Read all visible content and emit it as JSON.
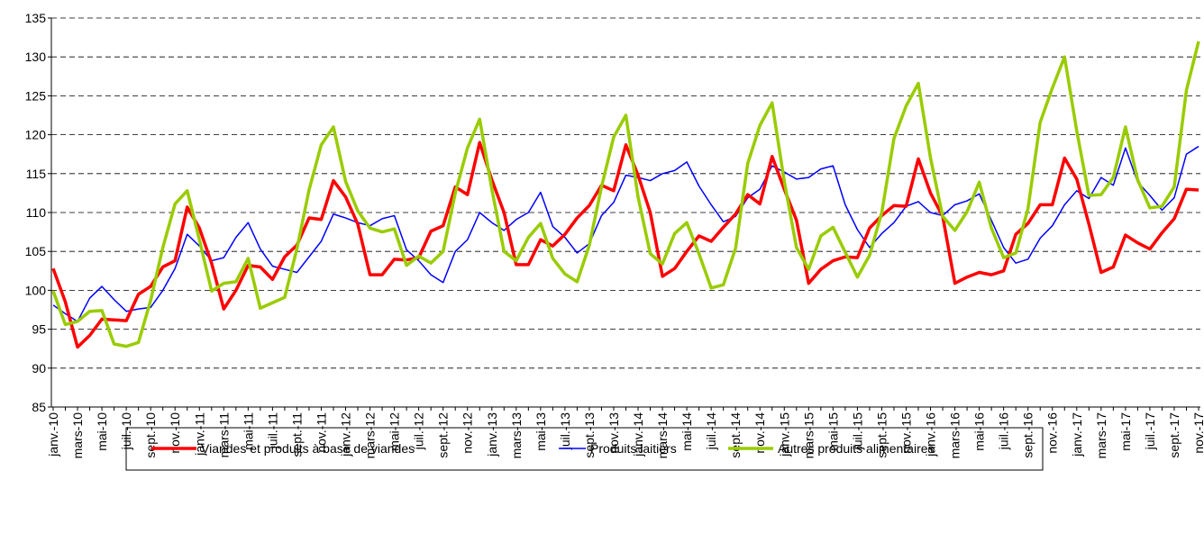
{
  "chart_data": {
    "type": "line",
    "categories": [
      "janv.-10",
      null,
      "mars-10",
      null,
      "mai-10",
      null,
      "juil.-10",
      null,
      "sept.-10",
      null,
      "nov.-10",
      null,
      "janv.-11",
      null,
      "mars-11",
      null,
      "mai-11",
      null,
      "juil.-11",
      null,
      "sept.-11",
      null,
      "nov.-11",
      null,
      "janv.-12",
      null,
      "mars-12",
      null,
      "mai-12",
      null,
      "juil.-12",
      null,
      "sept.-12",
      null,
      "nov.-12",
      null,
      "janv.-13",
      null,
      "mars-13",
      null,
      "mai-13",
      null,
      "juil.-13",
      null,
      "sept.-13",
      null,
      "nov.-13",
      null,
      "janv.-14",
      null,
      "mars-14",
      null,
      "mai-14",
      null,
      "juil.-14",
      null,
      "sept.-14",
      null,
      "nov.-14",
      null,
      "janv.-15",
      null,
      "mars-15",
      null,
      "mai-15",
      null,
      "juil.-15",
      null,
      "sept.-15",
      null,
      "nov.-15",
      null,
      "janv.-16",
      null,
      "mars-16",
      null,
      "mai-16",
      null,
      "juil.-16",
      null,
      "sept.-16",
      null,
      "nov.-16",
      null,
      "janv.-17",
      null,
      "mars-17",
      null,
      "mai-17",
      null,
      "juil.-17",
      null,
      "sept.-17",
      null,
      "nov.-17"
    ],
    "series": [
      {
        "name": "Viandes et produits à base de viandes",
        "color": "#ff0000",
        "width": 3.5,
        "values": [
          102.8,
          98.5,
          92.7,
          94.2,
          96.3,
          96.2,
          96.1,
          99.5,
          100.5,
          103,
          103.8,
          110.7,
          108,
          103.5,
          97.6,
          100,
          103.2,
          103,
          101.4,
          104.3,
          105.8,
          109.3,
          109.1,
          114.1,
          112,
          108.5,
          102,
          102,
          104,
          103.9,
          104.2,
          107.6,
          108.3,
          113.3,
          112.3,
          119,
          114.2,
          110,
          103.3,
          103.3,
          106.5,
          105.7,
          107.2,
          109.3,
          110.9,
          113.5,
          112.8,
          118.7,
          114.8,
          110,
          101.8,
          102.8,
          105,
          107,
          106.3,
          108.1,
          109.8,
          112.3,
          111.1,
          117.2,
          113,
          109,
          100.9,
          102.7,
          103.8,
          104.3,
          104.2,
          108,
          109.6,
          110.9,
          110.8,
          116.9,
          112.5,
          109.5,
          100.9,
          101.7,
          102.3,
          102,
          102.5,
          107.2,
          108.6,
          111,
          111,
          117,
          114.3,
          108.5,
          102.3,
          103,
          107.1,
          106.1,
          105.3,
          107.4,
          109.2,
          113,
          112.9
        ]
      },
      {
        "name": "Produits laitiers",
        "color": "#0000ff",
        "width": 1.5,
        "values": [
          98.1,
          97,
          96,
          99,
          100.5,
          98.8,
          97.3,
          97.6,
          97.8,
          100,
          102.8,
          107.2,
          105.7,
          103.8,
          104.2,
          106.8,
          108.7,
          105.3,
          103.1,
          102.7,
          102.3,
          104.3,
          106.3,
          109.8,
          109.3,
          108.7,
          108.3,
          109.2,
          109.6,
          105.2,
          103.8,
          102,
          101,
          105,
          106.5,
          110,
          108.7,
          107.7,
          109.1,
          110,
          112.6,
          108.2,
          106.8,
          104.8,
          106,
          109.6,
          111.3,
          114.8,
          114.5,
          114.1,
          115,
          115.4,
          116.5,
          113.4,
          111,
          108.8,
          109.5,
          111.9,
          113,
          116,
          115.2,
          114.3,
          114.5,
          115.6,
          116,
          111,
          107.8,
          105.5,
          107.3,
          108.7,
          110.8,
          111.4,
          110,
          109.6,
          111,
          111.5,
          112.4,
          109,
          105.5,
          103.5,
          104,
          106.7,
          108.3,
          111,
          112.8,
          111.8,
          114.5,
          113.5,
          118.3,
          113.9,
          112.2,
          110.3,
          111.9,
          117.5,
          118.5
        ]
      },
      {
        "name": "Autres produits alimentaires",
        "color": "#99cc00",
        "width": 3.5,
        "values": [
          99.9,
          95.6,
          96,
          97.3,
          97.4,
          93.1,
          92.8,
          93.3,
          98.7,
          105.5,
          111.1,
          112.8,
          106.5,
          99.9,
          100.9,
          101.1,
          104.1,
          97.7,
          98.4,
          99.1,
          105.3,
          112.9,
          118.7,
          121,
          114,
          110.2,
          108,
          107.5,
          107.9,
          103.2,
          104.4,
          103.5,
          105,
          112.5,
          118.3,
          122,
          113,
          105,
          103.8,
          106.8,
          108.6,
          104.1,
          102.1,
          101.1,
          105.8,
          113.3,
          119.7,
          122.5,
          112,
          104.7,
          103.4,
          107.3,
          108.7,
          104.7,
          100.3,
          100.7,
          105.4,
          116.3,
          121.2,
          124.1,
          114,
          105.5,
          102.7,
          107,
          108.1,
          104.9,
          101.7,
          104.5,
          110,
          119.5,
          123.7,
          126.6,
          117,
          109.5,
          107.7,
          110.1,
          113.9,
          108,
          104.2,
          104.8,
          110.5,
          121.6,
          126,
          130,
          120.5,
          112.2,
          112.3,
          114.5,
          121,
          114.2,
          110.6,
          110.8,
          113.3,
          125.7,
          132
        ]
      }
    ],
    "ylim": [
      85,
      135
    ],
    "yticks": [
      85,
      90,
      95,
      100,
      105,
      110,
      115,
      120,
      125,
      130,
      135
    ],
    "grid": true,
    "legend": "bottom"
  }
}
